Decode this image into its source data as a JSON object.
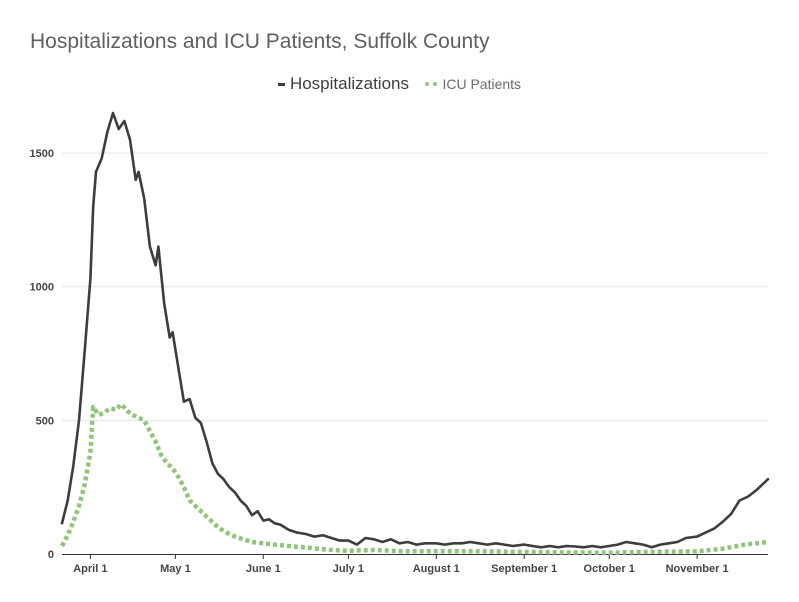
{
  "chart_data": {
    "type": "line",
    "title": "Hospitalizations and ICU Patients, Suffolk County",
    "legend_position": "top-center",
    "grid": true,
    "x_range": [
      "2020-03-22",
      "2020-11-26"
    ],
    "ylim": [
      0,
      1650
    ],
    "y_ticks": [
      {
        "value": 0,
        "label": "0"
      },
      {
        "value": 500,
        "label": "500"
      },
      {
        "value": 1000,
        "label": "1000"
      },
      {
        "value": 1500,
        "label": "1500"
      }
    ],
    "x_ticks": [
      {
        "date": "2020-04-01",
        "label": "April 1"
      },
      {
        "date": "2020-05-01",
        "label": "May 1"
      },
      {
        "date": "2020-06-01",
        "label": "June 1"
      },
      {
        "date": "2020-07-01",
        "label": "July 1"
      },
      {
        "date": "2020-08-01",
        "label": "August 1"
      },
      {
        "date": "2020-09-01",
        "label": "September 1"
      },
      {
        "date": "2020-10-01",
        "label": "October 1"
      },
      {
        "date": "2020-11-01",
        "label": "November 1"
      }
    ],
    "series": [
      {
        "name": "Hospitalizations",
        "color": "#3d3d3d",
        "style": "solid",
        "points": [
          [
            "2020-03-22",
            115
          ],
          [
            "2020-03-24",
            200
          ],
          [
            "2020-03-26",
            330
          ],
          [
            "2020-03-28",
            500
          ],
          [
            "2020-03-30",
            760
          ],
          [
            "2020-04-01",
            1030
          ],
          [
            "2020-04-02",
            1300
          ],
          [
            "2020-04-03",
            1430
          ],
          [
            "2020-04-05",
            1480
          ],
          [
            "2020-04-07",
            1580
          ],
          [
            "2020-04-09",
            1650
          ],
          [
            "2020-04-11",
            1590
          ],
          [
            "2020-04-13",
            1620
          ],
          [
            "2020-04-15",
            1550
          ],
          [
            "2020-04-17",
            1400
          ],
          [
            "2020-04-18",
            1430
          ],
          [
            "2020-04-20",
            1330
          ],
          [
            "2020-04-22",
            1150
          ],
          [
            "2020-04-24",
            1080
          ],
          [
            "2020-04-25",
            1150
          ],
          [
            "2020-04-27",
            940
          ],
          [
            "2020-04-29",
            810
          ],
          [
            "2020-04-30",
            830
          ],
          [
            "2020-05-02",
            700
          ],
          [
            "2020-05-04",
            570
          ],
          [
            "2020-05-06",
            580
          ],
          [
            "2020-05-08",
            510
          ],
          [
            "2020-05-10",
            490
          ],
          [
            "2020-05-12",
            420
          ],
          [
            "2020-05-14",
            340
          ],
          [
            "2020-05-16",
            300
          ],
          [
            "2020-05-18",
            280
          ],
          [
            "2020-05-20",
            250
          ],
          [
            "2020-05-22",
            230
          ],
          [
            "2020-05-24",
            200
          ],
          [
            "2020-05-26",
            180
          ],
          [
            "2020-05-28",
            145
          ],
          [
            "2020-05-30",
            160
          ],
          [
            "2020-06-01",
            125
          ],
          [
            "2020-06-03",
            130
          ],
          [
            "2020-06-05",
            115
          ],
          [
            "2020-06-07",
            110
          ],
          [
            "2020-06-10",
            90
          ],
          [
            "2020-06-13",
            80
          ],
          [
            "2020-06-16",
            75
          ],
          [
            "2020-06-19",
            65
          ],
          [
            "2020-06-22",
            70
          ],
          [
            "2020-06-25",
            60
          ],
          [
            "2020-06-28",
            50
          ],
          [
            "2020-07-01",
            50
          ],
          [
            "2020-07-04",
            35
          ],
          [
            "2020-07-07",
            60
          ],
          [
            "2020-07-10",
            55
          ],
          [
            "2020-07-13",
            45
          ],
          [
            "2020-07-16",
            55
          ],
          [
            "2020-07-19",
            40
          ],
          [
            "2020-07-22",
            45
          ],
          [
            "2020-07-25",
            35
          ],
          [
            "2020-07-28",
            40
          ],
          [
            "2020-08-01",
            40
          ],
          [
            "2020-08-04",
            35
          ],
          [
            "2020-08-07",
            40
          ],
          [
            "2020-08-10",
            40
          ],
          [
            "2020-08-13",
            45
          ],
          [
            "2020-08-16",
            40
          ],
          [
            "2020-08-19",
            35
          ],
          [
            "2020-08-22",
            40
          ],
          [
            "2020-08-25",
            35
          ],
          [
            "2020-08-28",
            30
          ],
          [
            "2020-09-01",
            35
          ],
          [
            "2020-09-04",
            30
          ],
          [
            "2020-09-07",
            25
          ],
          [
            "2020-09-10",
            30
          ],
          [
            "2020-09-13",
            25
          ],
          [
            "2020-09-16",
            30
          ],
          [
            "2020-09-19",
            28
          ],
          [
            "2020-09-22",
            25
          ],
          [
            "2020-09-25",
            30
          ],
          [
            "2020-09-28",
            25
          ],
          [
            "2020-10-01",
            30
          ],
          [
            "2020-10-04",
            35
          ],
          [
            "2020-10-07",
            45
          ],
          [
            "2020-10-10",
            40
          ],
          [
            "2020-10-13",
            35
          ],
          [
            "2020-10-16",
            25
          ],
          [
            "2020-10-19",
            35
          ],
          [
            "2020-10-22",
            40
          ],
          [
            "2020-10-25",
            45
          ],
          [
            "2020-10-28",
            60
          ],
          [
            "2020-11-01",
            65
          ],
          [
            "2020-11-04",
            80
          ],
          [
            "2020-11-07",
            95
          ],
          [
            "2020-11-10",
            120
          ],
          [
            "2020-11-13",
            150
          ],
          [
            "2020-11-16",
            200
          ],
          [
            "2020-11-19",
            215
          ],
          [
            "2020-11-22",
            240
          ],
          [
            "2020-11-26",
            280
          ]
        ]
      },
      {
        "name": "ICU Patients",
        "color": "#93c47d",
        "style": "dotted",
        "points": [
          [
            "2020-03-22",
            30
          ],
          [
            "2020-03-24",
            70
          ],
          [
            "2020-03-26",
            120
          ],
          [
            "2020-03-28",
            180
          ],
          [
            "2020-03-30",
            260
          ],
          [
            "2020-04-01",
            380
          ],
          [
            "2020-04-02",
            550
          ],
          [
            "2020-04-04",
            520
          ],
          [
            "2020-04-06",
            530
          ],
          [
            "2020-04-08",
            545
          ],
          [
            "2020-04-10",
            540
          ],
          [
            "2020-04-12",
            560
          ],
          [
            "2020-04-14",
            535
          ],
          [
            "2020-04-16",
            520
          ],
          [
            "2020-04-18",
            510
          ],
          [
            "2020-04-20",
            500
          ],
          [
            "2020-04-22",
            460
          ],
          [
            "2020-04-24",
            420
          ],
          [
            "2020-04-26",
            370
          ],
          [
            "2020-04-28",
            340
          ],
          [
            "2020-04-30",
            320
          ],
          [
            "2020-05-02",
            290
          ],
          [
            "2020-05-04",
            250
          ],
          [
            "2020-05-06",
            200
          ],
          [
            "2020-05-08",
            180
          ],
          [
            "2020-05-10",
            160
          ],
          [
            "2020-05-12",
            140
          ],
          [
            "2020-05-14",
            120
          ],
          [
            "2020-05-16",
            100
          ],
          [
            "2020-05-19",
            80
          ],
          [
            "2020-05-22",
            65
          ],
          [
            "2020-05-25",
            55
          ],
          [
            "2020-05-28",
            45
          ],
          [
            "2020-06-01",
            40
          ],
          [
            "2020-06-05",
            35
          ],
          [
            "2020-06-10",
            30
          ],
          [
            "2020-06-15",
            25
          ],
          [
            "2020-06-20",
            20
          ],
          [
            "2020-06-25",
            15
          ],
          [
            "2020-07-01",
            12
          ],
          [
            "2020-07-10",
            15
          ],
          [
            "2020-07-20",
            10
          ],
          [
            "2020-08-01",
            10
          ],
          [
            "2020-08-15",
            10
          ],
          [
            "2020-09-01",
            8
          ],
          [
            "2020-09-15",
            6
          ],
          [
            "2020-10-01",
            5
          ],
          [
            "2020-10-15",
            8
          ],
          [
            "2020-11-01",
            10
          ],
          [
            "2020-11-10",
            20
          ],
          [
            "2020-11-18",
            35
          ],
          [
            "2020-11-26",
            45
          ]
        ]
      }
    ]
  }
}
